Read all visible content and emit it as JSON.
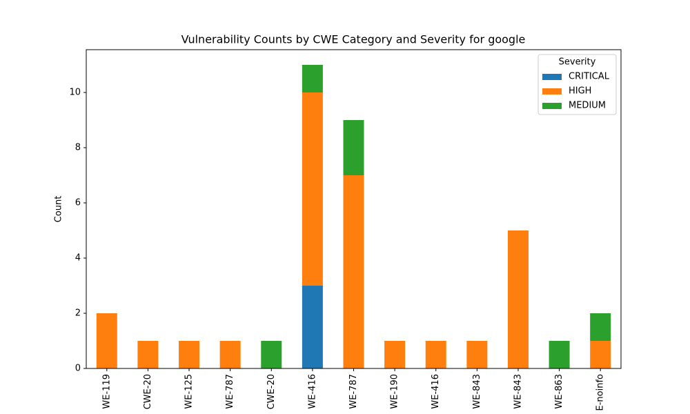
{
  "chart_data": {
    "type": "stacked_bar",
    "title": "Vulnerability Counts by CWE Category and Severity for google",
    "y_label": "Count",
    "categories": [
      "WE-119",
      "CWE-20",
      "WE-125",
      "WE-787",
      "CWE-20",
      "WE-416",
      "WE-787",
      "WE-190",
      "WE-416",
      "WE-843",
      "WE-843",
      "WE-863",
      "E-noinfo"
    ],
    "series": [
      {
        "name": "CRITICAL",
        "color": "#1f77b4",
        "values": [
          0,
          0,
          0,
          0,
          0,
          3,
          0,
          0,
          0,
          0,
          0,
          0,
          0
        ]
      },
      {
        "name": "HIGH",
        "color": "#ff7f0e",
        "values": [
          2,
          1,
          1,
          1,
          0,
          7,
          7,
          1,
          1,
          1,
          5,
          0,
          1
        ]
      },
      {
        "name": "MEDIUM",
        "color": "#2ca02c",
        "values": [
          0,
          0,
          0,
          0,
          1,
          1,
          2,
          0,
          0,
          0,
          0,
          1,
          1
        ]
      }
    ],
    "legend_title": "Severity",
    "legend": "upper right",
    "ylim": [
      0,
      11.55
    ],
    "yticks": [
      0,
      2,
      4,
      6,
      8,
      10
    ]
  }
}
